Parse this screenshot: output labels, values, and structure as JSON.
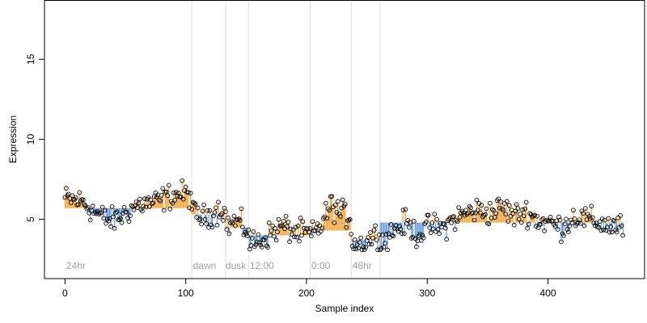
{
  "chart_data": {
    "type": "scatter",
    "title": "",
    "xlabel": "Sample index",
    "ylabel": "Expression",
    "xlim": [
      -17,
      480
    ],
    "ylim": [
      1.3,
      18.7
    ],
    "x_ticks": [
      0,
      100,
      200,
      300,
      400
    ],
    "y_ticks": [
      5,
      10,
      15
    ],
    "grid": false,
    "legend": "none",
    "baseline_color": "#6b9bd8",
    "above_color": "#f2a33a",
    "point_stroke": "#000000",
    "phase_lines": [
      {
        "x": 105,
        "label": "24hr"
      },
      {
        "x": 133,
        "label": "dawn"
      },
      {
        "x": 152,
        "label": "dusk"
      },
      {
        "x": 203,
        "label": "12:00"
      },
      {
        "x": 237,
        "label": "0:00"
      },
      {
        "x": 261,
        "label": "48hr"
      }
    ],
    "phase_label_x": [
      1,
      106,
      133,
      153,
      204,
      238
    ],
    "phase_label_y": 1.9,
    "segments": [
      {
        "x0": 0,
        "x1": 105,
        "baseline": 5.7
      },
      {
        "x0": 105,
        "x1": 133,
        "baseline": 5.3
      },
      {
        "x0": 133,
        "x1": 152,
        "baseline": 4.5
      },
      {
        "x0": 152,
        "x1": 203,
        "baseline": 4.0
      },
      {
        "x0": 203,
        "x1": 237,
        "baseline": 4.3
      },
      {
        "x0": 237,
        "x1": 261,
        "baseline": 3.7
      },
      {
        "x0": 261,
        "x1": 462,
        "baseline": 4.8
      }
    ],
    "anchors": [
      [
        0,
        6.3
      ],
      [
        8,
        6.2
      ],
      [
        15,
        6.1
      ],
      [
        22,
        5.6
      ],
      [
        30,
        5.2
      ],
      [
        38,
        4.9
      ],
      [
        45,
        5.1
      ],
      [
        52,
        5.5
      ],
      [
        60,
        5.9
      ],
      [
        68,
        6.0
      ],
      [
        76,
        6.1
      ],
      [
        85,
        6.4
      ],
      [
        95,
        6.6
      ],
      [
        104,
        6.5
      ],
      [
        106,
        5.4
      ],
      [
        115,
        5.1
      ],
      [
        125,
        5.5
      ],
      [
        132,
        5.7
      ],
      [
        134,
        4.6
      ],
      [
        142,
        4.9
      ],
      [
        151,
        4.3
      ],
      [
        153,
        3.5
      ],
      [
        160,
        3.6
      ],
      [
        170,
        4.1
      ],
      [
        180,
        4.6
      ],
      [
        190,
        4.2
      ],
      [
        202,
        4.1
      ],
      [
        204,
        4.0
      ],
      [
        212,
        4.6
      ],
      [
        220,
        5.9
      ],
      [
        228,
        5.4
      ],
      [
        236,
        5.2
      ],
      [
        238,
        3.6
      ],
      [
        246,
        3.4
      ],
      [
        254,
        3.9
      ],
      [
        260,
        4.1
      ],
      [
        262,
        3.5
      ],
      [
        272,
        4.3
      ],
      [
        282,
        4.8
      ],
      [
        292,
        4.0
      ],
      [
        302,
        4.6
      ],
      [
        312,
        4.4
      ],
      [
        322,
        5.0
      ],
      [
        332,
        5.4
      ],
      [
        342,
        5.6
      ],
      [
        352,
        5.4
      ],
      [
        362,
        5.8
      ],
      [
        372,
        5.2
      ],
      [
        382,
        5.5
      ],
      [
        392,
        4.9
      ],
      [
        402,
        4.8
      ],
      [
        412,
        4.5
      ],
      [
        422,
        5.2
      ],
      [
        432,
        5.0
      ],
      [
        442,
        4.8
      ],
      [
        452,
        4.6
      ],
      [
        462,
        4.5
      ]
    ],
    "n_points": 463,
    "noise": 0.55
  }
}
